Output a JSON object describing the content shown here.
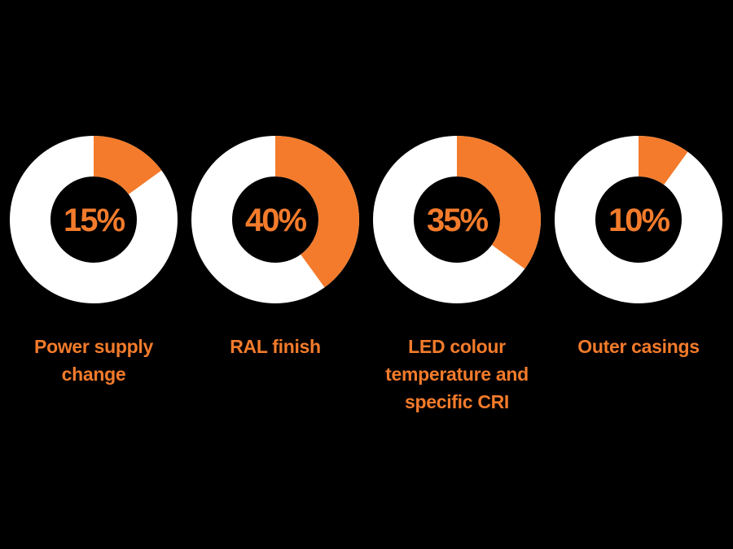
{
  "colors": {
    "background": "#000000",
    "accent": "#F37B2B",
    "track": "#FFFFFF"
  },
  "chart_data": {
    "type": "pie",
    "variant": "donut",
    "categories": [
      "Power supply\nchange",
      "RAL finish",
      "LED colour\ntemperature and\nspecific CRI",
      "Outer casings"
    ],
    "values": [
      15,
      40,
      35,
      10
    ],
    "value_labels": [
      "15%",
      "40%",
      "35%",
      "10%"
    ]
  }
}
